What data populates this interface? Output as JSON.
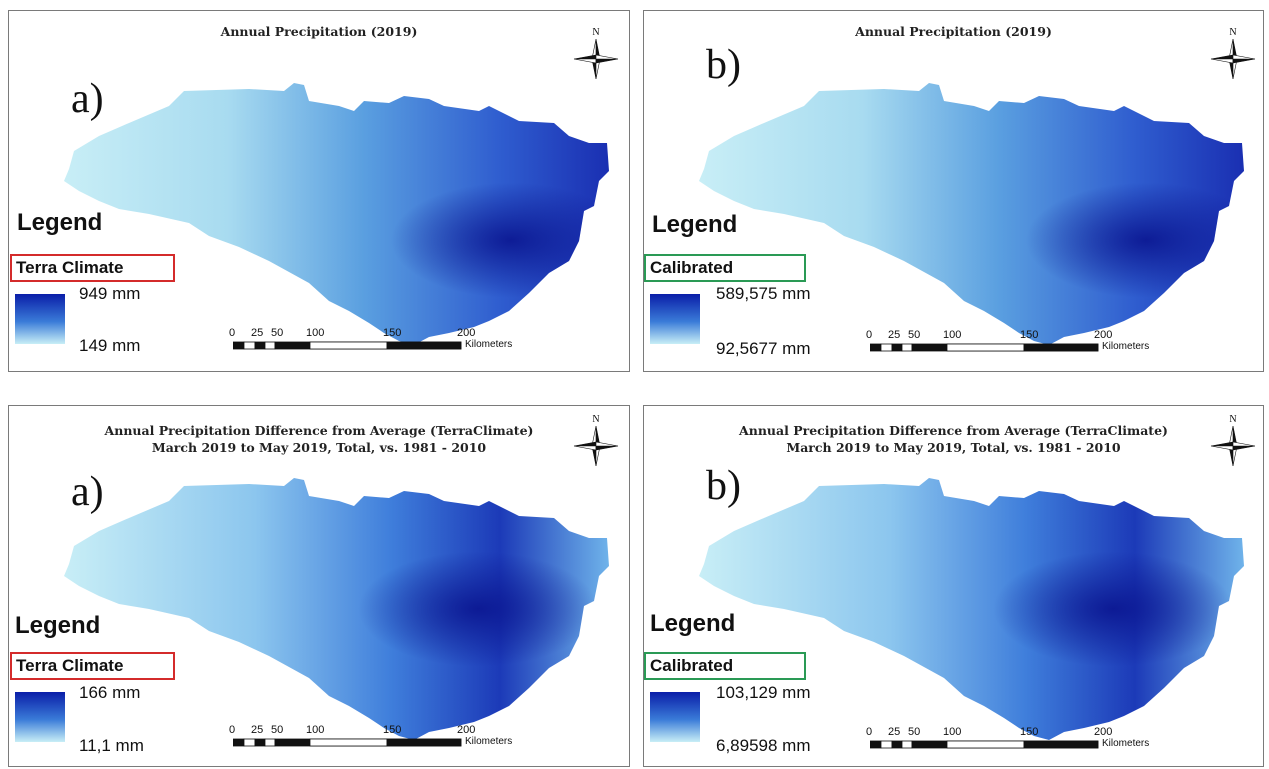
{
  "panels": [
    {
      "letter": "a)",
      "title_lines": [
        "Annual Precipitation (2019)"
      ],
      "legend_title": "Legend",
      "source_label": "Terra Climate",
      "box_color": "#d42b2b",
      "max_label": "949 mm",
      "min_label": "149 mm",
      "variant": "annual"
    },
    {
      "letter": "b)",
      "title_lines": [
        "Annual Precipitation (2019)"
      ],
      "legend_title": "Legend",
      "source_label": "Calibrated",
      "box_color": "#2a9a55",
      "max_label": "589,575 mm",
      "min_label": "92,5677 mm",
      "variant": "annual"
    },
    {
      "letter": "a)",
      "title_lines": [
        "Annual Precipitation Difference from Average (TerraClimate)",
        "March 2019 to May 2019, Total, vs. 1981 - 2010"
      ],
      "legend_title": "Legend",
      "source_label": "Terra Climate",
      "box_color": "#d42b2b",
      "max_label": "166 mm",
      "min_label": "11,1 mm",
      "variant": "difference"
    },
    {
      "letter": "b)",
      "title_lines": [
        "Annual Precipitation Difference from Average (TerraClimate)",
        "March 2019 to May 2019, Total, vs. 1981 - 2010"
      ],
      "legend_title": "Legend",
      "source_label": "Calibrated",
      "box_color": "#2a9a55",
      "max_label": "103,129 mm",
      "min_label": "6,89598 mm",
      "variant": "difference"
    }
  ],
  "scale": {
    "ticks": [
      "0",
      "25",
      "50",
      "100",
      "150",
      "200"
    ],
    "unit": "Kilometers"
  },
  "north_label": "N",
  "colors": {
    "ramp_high": "#0a1ea8",
    "ramp_low": "#c8eef6"
  }
}
